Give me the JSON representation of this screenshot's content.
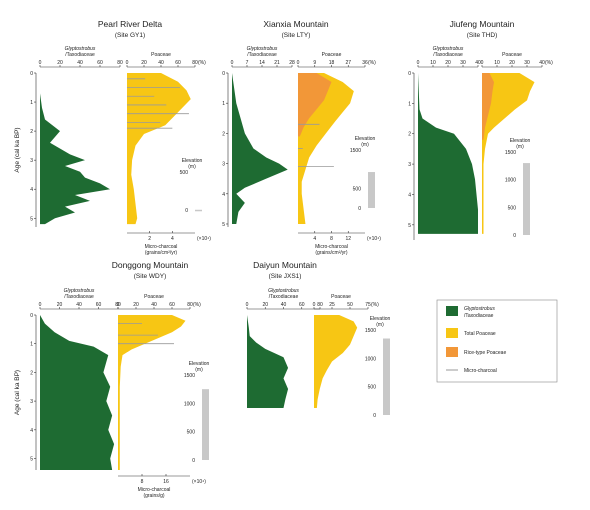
{
  "colors": {
    "glypto": "#1e6b32",
    "poaceae": "#f7c614",
    "rice": "#f29738",
    "charcoal": "#9a9a9a",
    "elev": "#c8c8c8",
    "axis": "#333333"
  },
  "shared": {
    "yaxis_label": "Age (cal ka BP)",
    "glypto_label_1": "Glyptostrobus",
    "glypto_label_2": "/Taxodiaceae",
    "poaceae_label": "Poaceae",
    "pct": "(%)",
    "elevation_label": "Elevation",
    "elev_unit": "(m)",
    "charcoal_unit_mult": "(×10⁴)",
    "micro_charcoal_label": "Micro-charcoal"
  },
  "legend": {
    "items": [
      {
        "key": "glypto",
        "line1": "Glyptostrobus",
        "line2": "/Taxodiaceae",
        "kind": "box"
      },
      {
        "key": "poaceae",
        "line1": "Total Poaceae",
        "line2": "",
        "kind": "box"
      },
      {
        "key": "rice",
        "line1": "Rice-type Poaceae",
        "line2": "",
        "kind": "box"
      },
      {
        "key": "charcoal",
        "line1": "Micro-charcoal",
        "line2": "",
        "kind": "line"
      }
    ]
  },
  "chart_data": [
    {
      "type": "area",
      "title": "Pearl River Delta",
      "subtitle": "(Site GY1)",
      "ylabel": "Age (cal ka BP)",
      "y_ticks": [
        "0",
        "1",
        "2",
        "3",
        "4",
        "5"
      ],
      "glypto_ticks": [
        "0",
        "20",
        "40",
        "60",
        "80"
      ],
      "poaceae_ticks": [
        "0",
        "20",
        "40",
        "60",
        "80",
        "(%)"
      ],
      "charcoal_label": "Micro-charcoal",
      "charcoal_unit": "(grains/cm²/yr)",
      "charcoal_ticks": [
        "2",
        "4"
      ],
      "elevation": {
        "ticks": [
          "500",
          "0"
        ],
        "value": 3
      },
      "series": [
        {
          "name": "Glyptostrobus/Taxodiaceae",
          "ages": [
            0,
            0.7,
            1.2,
            1.6,
            2,
            2.4,
            2.8,
            3,
            3.2,
            3.4,
            3.6,
            3.8,
            4,
            4.2,
            4.4,
            4.6,
            4.8,
            5,
            5.2
          ],
          "values": [
            0,
            0,
            2,
            5,
            20,
            10,
            30,
            45,
            25,
            40,
            45,
            60,
            70,
            35,
            50,
            25,
            35,
            15,
            5
          ]
        },
        {
          "name": "Total Poaceae",
          "ages": [
            0,
            0.3,
            0.6,
            0.9,
            1.2,
            1.5,
            1.8,
            2.1,
            2.5,
            3,
            3.5,
            4,
            4.5,
            5,
            5.2
          ],
          "values": [
            40,
            60,
            70,
            75,
            65,
            55,
            45,
            20,
            10,
            6,
            5,
            8,
            10,
            12,
            10
          ]
        },
        {
          "name": "Micro-charcoal",
          "ages": [
            0.2,
            0.5,
            0.8,
            1.1,
            1.4,
            1.7,
            1.9
          ],
          "values": [
            1.2,
            3.5,
            1.8,
            2.6,
            4.1,
            2.2,
            3.0
          ]
        }
      ]
    },
    {
      "type": "area",
      "title": "Xianxia Mountain",
      "subtitle": "(Site LTY)",
      "ylabel": "Age (cal ka BP)",
      "y_ticks": [
        "0",
        "1",
        "2",
        "3",
        "4",
        "5"
      ],
      "glypto_ticks": [
        "0",
        "7",
        "14",
        "21",
        "28"
      ],
      "poaceae_ticks": [
        "0",
        "9",
        "18",
        "27",
        "36",
        "(%)"
      ],
      "charcoal_label": "Micro-charcoal",
      "charcoal_unit": "(grains/cm²/yr)",
      "charcoal_ticks": [
        "4",
        "8",
        "12"
      ],
      "elevation": {
        "ticks": [
          "1500",
          "500",
          "0"
        ],
        "value": 930
      },
      "series": [
        {
          "name": "Glyptostrobus/Taxodiaceae",
          "ages": [
            0,
            1,
            1.5,
            2,
            2.5,
            2.8,
            3,
            3.2,
            3.5,
            3.8,
            4,
            4.3,
            4.6,
            5
          ],
          "values": [
            0,
            2,
            4,
            6,
            10,
            16,
            22,
            26,
            16,
            6,
            2,
            6,
            3,
            2
          ]
        },
        {
          "name": "Total Poaceae",
          "ages": [
            0,
            0.3,
            0.6,
            1,
            1.3,
            1.6,
            2,
            2.4,
            2.8,
            3.2,
            3.6,
            4,
            4.5,
            5
          ],
          "values": [
            14,
            24,
            30,
            28,
            24,
            20,
            15,
            10,
            6,
            4,
            2,
            2,
            3,
            4
          ]
        },
        {
          "name": "Rice-type Poaceae",
          "ages": [
            0,
            0.3,
            0.6,
            0.9,
            1.2,
            1.5,
            1.8,
            2.1
          ],
          "values": [
            10,
            18,
            16,
            14,
            10,
            6,
            3,
            1
          ]
        },
        {
          "name": "Micro-charcoal",
          "ages": [
            1.7,
            2.5,
            3.1
          ],
          "values": [
            4.5,
            1.0,
            7.5
          ]
        }
      ]
    },
    {
      "type": "area",
      "title": "Jiufeng Mountain",
      "subtitle": "(Site THD)",
      "ylabel": "Age (cal ka BP)",
      "y_ticks": [
        "0",
        "1",
        "2",
        "3",
        "4",
        "5"
      ],
      "glypto_ticks": [
        "0",
        "10",
        "20",
        "30",
        "40"
      ],
      "poaceae_ticks": [
        "0",
        "10",
        "20",
        "30",
        "40",
        "(%)"
      ],
      "elevation": {
        "ticks": [
          "1500",
          "1000",
          "500",
          "0"
        ],
        "value": 1300
      },
      "series": [
        {
          "name": "Glyptostrobus/Taxodiaceae",
          "ages": [
            0,
            1.2,
            1.5,
            1.8,
            2,
            2.5,
            3,
            3.5,
            4,
            4.5,
            5,
            5.3
          ],
          "values": [
            0,
            1,
            3,
            12,
            24,
            32,
            36,
            38,
            39,
            40,
            40,
            40
          ]
        },
        {
          "name": "Total Poaceae",
          "ages": [
            0,
            0.3,
            0.6,
            0.9,
            1.2,
            1.5,
            1.8,
            2,
            2.5,
            3,
            4,
            5,
            5.3
          ],
          "values": [
            25,
            35,
            32,
            30,
            22,
            15,
            8,
            4,
            2,
            1,
            1,
            1,
            1
          ]
        },
        {
          "name": "Rice-type Poaceae",
          "ages": [
            0,
            0.3,
            0.6,
            1,
            1.4,
            1.8,
            2.2
          ],
          "values": [
            5,
            8,
            7,
            6,
            4,
            2,
            1
          ]
        }
      ]
    },
    {
      "type": "area",
      "title": "Donggong Mountain",
      "subtitle": "(Site WDY)",
      "ylabel": "Age (cal ka BP)",
      "y_ticks": [
        "0",
        "1",
        "2",
        "3",
        "4",
        "5"
      ],
      "glypto_ticks": [
        "0",
        "20",
        "40",
        "60",
        "80"
      ],
      "poaceae_ticks": [
        "0",
        "20",
        "40",
        "60",
        "80",
        "(%)"
      ],
      "charcoal_label": "Micro-charcoal",
      "charcoal_unit": "(grains/g)",
      "charcoal_ticks": [
        "8",
        "16"
      ],
      "elevation": {
        "ticks": [
          "1500",
          "1000",
          "500",
          "0"
        ],
        "value": 1250
      },
      "series": [
        {
          "name": "Glyptostrobus/Taxodiaceae",
          "ages": [
            0,
            0.3,
            0.6,
            0.9,
            1.1,
            1.4,
            2,
            2.5,
            3,
            3.5,
            4,
            4.5,
            5,
            5.4
          ],
          "values": [
            0,
            5,
            15,
            30,
            55,
            70,
            65,
            72,
            68,
            74,
            70,
            76,
            72,
            74
          ]
        },
        {
          "name": "Total Poaceae",
          "ages": [
            0,
            0.2,
            0.4,
            0.6,
            0.8,
            1,
            1.2,
            1.4,
            1.8,
            2.5,
            3.5,
            4.5,
            5.4
          ],
          "values": [
            60,
            75,
            70,
            60,
            45,
            30,
            15,
            5,
            3,
            2,
            2,
            2,
            2
          ]
        },
        {
          "name": "Micro-charcoal",
          "ages": [
            0.3,
            0.7,
            1.0
          ],
          "values": [
            6,
            10,
            14
          ]
        }
      ]
    },
    {
      "type": "area",
      "title": "Daiyun Mountain",
      "subtitle": "(Site JXS1)",
      "glypto_ticks": [
        "0",
        "20",
        "40",
        "60",
        "80"
      ],
      "poaceae_ticks": [
        "0",
        "25",
        "50",
        "75",
        "(%)"
      ],
      "elevation": {
        "ticks": [
          "1500",
          "1000",
          "500",
          "0"
        ],
        "value": 1350
      },
      "series": [
        {
          "name": "Glyptostrobus/Taxodiaceae",
          "ages": [
            0,
            0.6,
            1,
            1.3,
            1.6,
            2,
            2.5,
            3,
            3.5,
            4,
            4.4
          ],
          "values": [
            0,
            2,
            3,
            10,
            20,
            40,
            45,
            40,
            45,
            42,
            40
          ]
        },
        {
          "name": "Total Poaceae",
          "ages": [
            0,
            0.3,
            0.6,
            1,
            1.4,
            1.8,
            2.2,
            2.6,
            3,
            3.5,
            4,
            4.4
          ],
          "values": [
            35,
            55,
            60,
            55,
            50,
            40,
            25,
            18,
            12,
            8,
            5,
            4
          ]
        }
      ]
    }
  ]
}
